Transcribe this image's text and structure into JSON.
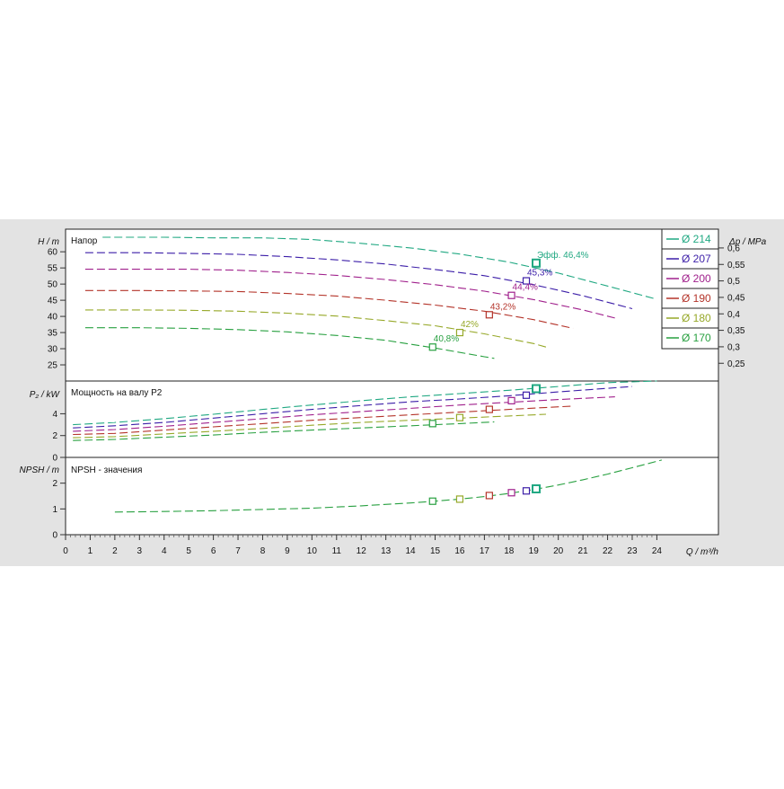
{
  "chart_data": {
    "type": "line",
    "xlabel": "Q / m³/h",
    "x_ticks": [
      "0",
      "1",
      "2",
      "3",
      "4",
      "5",
      "6",
      "7",
      "8",
      "9",
      "10",
      "11",
      "12",
      "13",
      "14",
      "15",
      "16",
      "17",
      "18",
      "19",
      "20",
      "21",
      "22",
      "23",
      "24"
    ],
    "xlim": [
      0,
      26.5
    ],
    "legend_placement": "right",
    "series": [
      {
        "name": "Ø 214",
        "color": "#20a882",
        "eff_label": "Эфф.  46,4%"
      },
      {
        "name": "Ø 207",
        "color": "#3c1ea8",
        "eff_label": "45,3%"
      },
      {
        "name": "Ø 200",
        "color": "#a0208c",
        "eff_label": "44,4%"
      },
      {
        "name": "Ø 190",
        "color": "#b4342a",
        "eff_label": "43,2%"
      },
      {
        "name": "Ø 180",
        "color": "#96a828",
        "eff_label": "42%"
      },
      {
        "name": "Ø 170",
        "color": "#28a040",
        "eff_label": "40,8%"
      }
    ],
    "panels": [
      {
        "title": "Напор",
        "ylabel": "H / m",
        "ylim": [
          20,
          67
        ],
        "y_ticks": [
          "25",
          "30",
          "35",
          "40",
          "45",
          "50",
          "55",
          "60"
        ],
        "y2label": "Δp / MPa",
        "y2_ticks": [
          "0,25",
          "0,3",
          "0,35",
          "0,4",
          "0,45",
          "0,5",
          "0,55",
          "0,6"
        ],
        "curves": [
          {
            "series": 0,
            "x": [
              1.5,
              4,
              6,
              8,
              10,
              12,
              14,
              16,
              18,
              20,
              22,
              23.9
            ],
            "y": [
              64.5,
              64.5,
              64.3,
              64.3,
              63.8,
              62.6,
              61.2,
              59.3,
              56.8,
              53.4,
              49.4,
              45.5
            ],
            "duty": [
              19.1,
              56.5
            ]
          },
          {
            "series": 1,
            "x": [
              0.8,
              3,
              5,
              7,
              9,
              11,
              13,
              15,
              17,
              19,
              21,
              23
            ],
            "y": [
              59.7,
              59.7,
              59.5,
              59.2,
              58.5,
              57.5,
              56.2,
              54.5,
              52.6,
              49.8,
              46.4,
              42.4
            ],
            "duty": [
              18.7,
              51
            ]
          },
          {
            "series": 2,
            "x": [
              0.8,
              3,
              5,
              7,
              9,
              11,
              13,
              15,
              17,
              19,
              21,
              22.3
            ],
            "y": [
              54.6,
              54.6,
              54.6,
              54.3,
              53.6,
              52.7,
              51.4,
              49.8,
              47.8,
              45.2,
              42,
              39.5
            ],
            "duty": [
              18.1,
              46.5
            ]
          },
          {
            "series": 3,
            "x": [
              0.8,
              3,
              5,
              7,
              9,
              11,
              13,
              15,
              17,
              19,
              20.6
            ],
            "y": [
              48,
              48,
              47.9,
              47.7,
              47.1,
              46.3,
              45,
              43.5,
              41.6,
              39,
              36.3
            ],
            "duty": [
              17.2,
              40.5
            ]
          },
          {
            "series": 4,
            "x": [
              0.8,
              3,
              5,
              7,
              9,
              11,
              13,
              15,
              17,
              19,
              19.5
            ],
            "y": [
              42,
              42,
              41.9,
              41.6,
              41,
              40.1,
              38.7,
              37.1,
              34.6,
              31.6,
              30.5
            ],
            "duty": [
              16,
              35
            ]
          },
          {
            "series": 5,
            "x": [
              0.8,
              3,
              5,
              7,
              9,
              11,
              13,
              15,
              17,
              17.4
            ],
            "y": [
              36.5,
              36.5,
              36.3,
              35.9,
              35.2,
              34.1,
              32.6,
              30.2,
              27.5,
              27
            ],
            "duty": [
              14.9,
              30.5
            ]
          }
        ]
      },
      {
        "title": "Мощность на валу P2",
        "ylabel": "P₂ / kW",
        "ylim": [
          0,
          7
        ],
        "y_ticks": [
          "0",
          "2",
          "4"
        ],
        "curves": [
          {
            "series": 0,
            "x": [
              0.3,
              2,
              4,
              6,
              8,
              10,
              12,
              14,
              16,
              18,
              20,
              22,
              24
            ],
            "y": [
              3,
              3.2,
              3.55,
              3.95,
              4.4,
              4.8,
              5.2,
              5.55,
              5.85,
              6.15,
              6.5,
              6.85,
              7
            ],
            "duty": [
              19.1,
              6.3
            ]
          },
          {
            "series": 1,
            "x": [
              0.3,
              2,
              4,
              6,
              8,
              10,
              12,
              14,
              16,
              18,
              20,
              23
            ],
            "y": [
              2.7,
              2.9,
              3.2,
              3.6,
              4,
              4.4,
              4.75,
              5.1,
              5.35,
              5.65,
              6,
              6.5
            ],
            "duty": [
              18.7,
              5.7
            ]
          },
          {
            "series": 2,
            "x": [
              0.3,
              2,
              4,
              6,
              8,
              10,
              12,
              14,
              16,
              18,
              20,
              22.3
            ],
            "y": [
              2.4,
              2.55,
              2.85,
              3.2,
              3.55,
              3.9,
              4.2,
              4.5,
              4.8,
              5.05,
              5.3,
              5.55
            ],
            "duty": [
              18.1,
              5.2
            ]
          },
          {
            "series": 3,
            "x": [
              0.3,
              2,
              4,
              6,
              8,
              10,
              12,
              14,
              16,
              18,
              20.6
            ],
            "y": [
              2.1,
              2.2,
              2.5,
              2.8,
              3.1,
              3.4,
              3.65,
              3.9,
              4.15,
              4.4,
              4.7
            ],
            "duty": [
              17.2,
              4.4
            ]
          },
          {
            "series": 4,
            "x": [
              0.3,
              2,
              4,
              6,
              8,
              10,
              12,
              14,
              16,
              18,
              19.5
            ],
            "y": [
              1.8,
              1.9,
              2.15,
              2.4,
              2.65,
              2.95,
              3.2,
              3.4,
              3.6,
              3.8,
              3.95
            ],
            "duty": [
              16,
              3.65
            ]
          },
          {
            "series": 5,
            "x": [
              0.3,
              2,
              4,
              6,
              8,
              10,
              12,
              14,
              16,
              17.4
            ],
            "y": [
              1.55,
              1.65,
              1.85,
              2.05,
              2.3,
              2.5,
              2.7,
              2.9,
              3.1,
              3.25
            ],
            "duty": [
              14.9,
              3.1
            ]
          }
        ]
      },
      {
        "title": "NPSH - значения",
        "ylabel": "NPSH / m",
        "ylim": [
          0,
          3
        ],
        "y_ticks": [
          "0",
          "1",
          "2"
        ],
        "curves": [
          {
            "series": 5,
            "x": [
              2,
              4,
              6,
              8,
              10,
              12,
              14,
              15,
              16,
              17,
              18,
              19,
              20,
              21,
              22,
              23,
              24.2
            ],
            "y": [
              0.88,
              0.9,
              0.93,
              0.98,
              1.03,
              1.12,
              1.23,
              1.3,
              1.38,
              1.48,
              1.6,
              1.75,
              1.93,
              2.13,
              2.35,
              2.6,
              2.9
            ],
            "duty": null
          }
        ],
        "duty_points": [
          [
            14.9,
            1.3,
            5
          ],
          [
            16,
            1.38,
            4
          ],
          [
            17.2,
            1.52,
            3
          ],
          [
            18.1,
            1.63,
            2
          ],
          [
            18.7,
            1.7,
            1
          ],
          [
            19.1,
            1.78,
            0
          ]
        ]
      }
    ]
  }
}
